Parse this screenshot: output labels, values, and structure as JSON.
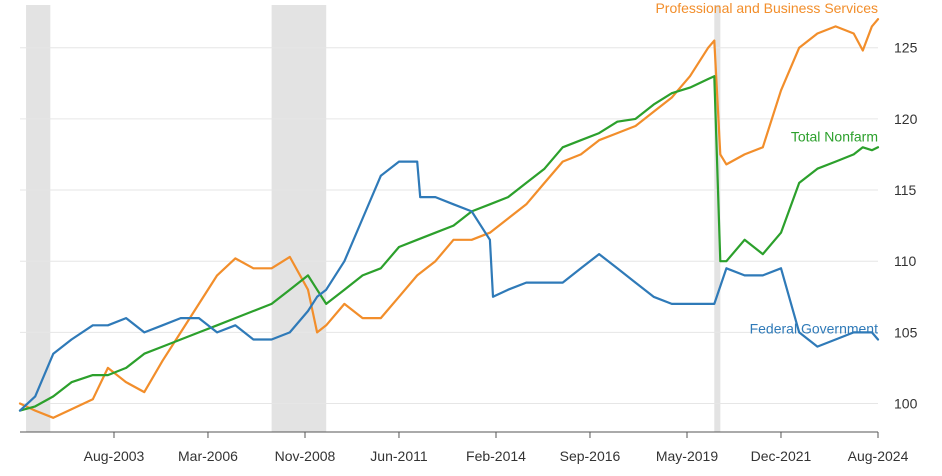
{
  "chart_data": {
    "type": "line",
    "title": "",
    "xlabel": "",
    "ylabel": "",
    "grid": true,
    "ylim": [
      98,
      128
    ],
    "y_ticks": [
      100,
      105,
      110,
      115,
      120,
      125
    ],
    "x_range": [
      "2001-01",
      "2024-08"
    ],
    "x_ticks": [
      {
        "date": "2003-08",
        "label": "Aug-2003"
      },
      {
        "date": "2006-03",
        "label": "Mar-2006"
      },
      {
        "date": "2008-11",
        "label": "Nov-2008"
      },
      {
        "date": "2011-06",
        "label": "Jun-2011"
      },
      {
        "date": "2014-02",
        "label": "Feb-2014"
      },
      {
        "date": "2016-09",
        "label": "Sep-2016"
      },
      {
        "date": "2019-05",
        "label": "May-2019"
      },
      {
        "date": "2021-12",
        "label": "Dec-2021"
      },
      {
        "date": "2024-08",
        "label": "Aug-2024"
      }
    ],
    "recessions": [
      {
        "start": "2001-03",
        "end": "2001-11"
      },
      {
        "start": "2007-12",
        "end": "2009-06"
      },
      {
        "start": "2020-02",
        "end": "2020-04"
      }
    ],
    "series": [
      {
        "name": "Professional and Business Services",
        "color": "#f28e2b",
        "points": [
          [
            "2001-01",
            100.0
          ],
          [
            "2001-06",
            99.5
          ],
          [
            "2001-12",
            99.0
          ],
          [
            "2002-06",
            99.6
          ],
          [
            "2003-01",
            100.3
          ],
          [
            "2003-06",
            102.5
          ],
          [
            "2003-12",
            101.5
          ],
          [
            "2004-06",
            100.8
          ],
          [
            "2004-12",
            103.0
          ],
          [
            "2005-06",
            105.0
          ],
          [
            "2005-12",
            107.0
          ],
          [
            "2006-06",
            109.0
          ],
          [
            "2006-12",
            110.2
          ],
          [
            "2007-06",
            109.5
          ],
          [
            "2007-12",
            109.5
          ],
          [
            "2008-06",
            110.3
          ],
          [
            "2008-12",
            108.0
          ],
          [
            "2009-03",
            105.0
          ],
          [
            "2009-06",
            105.5
          ],
          [
            "2009-12",
            107.0
          ],
          [
            "2010-06",
            106.0
          ],
          [
            "2010-12",
            106.0
          ],
          [
            "2011-06",
            107.5
          ],
          [
            "2011-12",
            109.0
          ],
          [
            "2012-06",
            110.0
          ],
          [
            "2012-12",
            111.5
          ],
          [
            "2013-06",
            111.5
          ],
          [
            "2013-12",
            112.0
          ],
          [
            "2014-06",
            113.0
          ],
          [
            "2014-12",
            114.0
          ],
          [
            "2015-06",
            115.5
          ],
          [
            "2015-12",
            117.0
          ],
          [
            "2016-06",
            117.5
          ],
          [
            "2016-12",
            118.5
          ],
          [
            "2017-06",
            119.0
          ],
          [
            "2017-12",
            119.5
          ],
          [
            "2018-06",
            120.5
          ],
          [
            "2018-12",
            121.5
          ],
          [
            "2019-06",
            123.0
          ],
          [
            "2019-12",
            125.0
          ],
          [
            "2020-02",
            125.5
          ],
          [
            "2020-04",
            117.5
          ],
          [
            "2020-06",
            116.8
          ],
          [
            "2020-12",
            117.5
          ],
          [
            "2021-06",
            118.0
          ],
          [
            "2021-12",
            122.0
          ],
          [
            "2022-06",
            125.0
          ],
          [
            "2022-12",
            126.0
          ],
          [
            "2023-06",
            126.5
          ],
          [
            "2023-12",
            126.0
          ],
          [
            "2024-03",
            124.8
          ],
          [
            "2024-06",
            126.5
          ],
          [
            "2024-08",
            127.0
          ]
        ]
      },
      {
        "name": "Total Nonfarm",
        "color": "#2ca02c",
        "points": [
          [
            "2001-01",
            99.5
          ],
          [
            "2001-06",
            99.8
          ],
          [
            "2001-12",
            100.5
          ],
          [
            "2002-06",
            101.5
          ],
          [
            "2003-01",
            102.0
          ],
          [
            "2003-06",
            102.0
          ],
          [
            "2003-12",
            102.5
          ],
          [
            "2004-06",
            103.5
          ],
          [
            "2004-12",
            104.0
          ],
          [
            "2005-06",
            104.5
          ],
          [
            "2005-12",
            105.0
          ],
          [
            "2006-06",
            105.5
          ],
          [
            "2006-12",
            106.0
          ],
          [
            "2007-06",
            106.5
          ],
          [
            "2007-12",
            107.0
          ],
          [
            "2008-06",
            108.0
          ],
          [
            "2008-12",
            109.0
          ],
          [
            "2009-03",
            108.0
          ],
          [
            "2009-06",
            107.0
          ],
          [
            "2009-12",
            108.0
          ],
          [
            "2010-06",
            109.0
          ],
          [
            "2010-12",
            109.5
          ],
          [
            "2011-06",
            111.0
          ],
          [
            "2011-12",
            111.5
          ],
          [
            "2012-06",
            112.0
          ],
          [
            "2012-12",
            112.5
          ],
          [
            "2013-06",
            113.5
          ],
          [
            "2013-12",
            114.0
          ],
          [
            "2014-06",
            114.5
          ],
          [
            "2014-12",
            115.5
          ],
          [
            "2015-06",
            116.5
          ],
          [
            "2015-12",
            118.0
          ],
          [
            "2016-06",
            118.5
          ],
          [
            "2016-12",
            119.0
          ],
          [
            "2017-06",
            119.8
          ],
          [
            "2017-12",
            120.0
          ],
          [
            "2018-06",
            121.0
          ],
          [
            "2018-12",
            121.8
          ],
          [
            "2019-06",
            122.2
          ],
          [
            "2019-12",
            122.8
          ],
          [
            "2020-02",
            123.0
          ],
          [
            "2020-04",
            110.0
          ],
          [
            "2020-06",
            110.0
          ],
          [
            "2020-12",
            111.5
          ],
          [
            "2021-06",
            110.5
          ],
          [
            "2021-12",
            112.0
          ],
          [
            "2022-06",
            115.5
          ],
          [
            "2022-12",
            116.5
          ],
          [
            "2023-06",
            117.0
          ],
          [
            "2023-12",
            117.5
          ],
          [
            "2024-03",
            118.0
          ],
          [
            "2024-06",
            117.8
          ],
          [
            "2024-08",
            118.0
          ]
        ]
      },
      {
        "name": "Federal Government",
        "color": "#2f7ab8",
        "points": [
          [
            "2001-01",
            99.5
          ],
          [
            "2001-06",
            100.5
          ],
          [
            "2001-12",
            103.5
          ],
          [
            "2002-06",
            104.5
          ],
          [
            "2003-01",
            105.5
          ],
          [
            "2003-06",
            105.5
          ],
          [
            "2003-12",
            106.0
          ],
          [
            "2004-06",
            105.0
          ],
          [
            "2004-12",
            105.5
          ],
          [
            "2005-06",
            106.0
          ],
          [
            "2005-12",
            106.0
          ],
          [
            "2006-06",
            105.0
          ],
          [
            "2006-12",
            105.5
          ],
          [
            "2007-06",
            104.5
          ],
          [
            "2007-12",
            104.5
          ],
          [
            "2008-06",
            105.0
          ],
          [
            "2008-12",
            106.5
          ],
          [
            "2009-03",
            107.5
          ],
          [
            "2009-06",
            108.0
          ],
          [
            "2009-12",
            110.0
          ],
          [
            "2010-06",
            113.0
          ],
          [
            "2010-12",
            116.0
          ],
          [
            "2011-06",
            117.0
          ],
          [
            "2011-12",
            117.0
          ],
          [
            "2012-01",
            114.5
          ],
          [
            "2012-06",
            114.5
          ],
          [
            "2012-12",
            114.0
          ],
          [
            "2013-06",
            113.5
          ],
          [
            "2013-12",
            111.5
          ],
          [
            "2014-01",
            107.5
          ],
          [
            "2014-06",
            108.0
          ],
          [
            "2014-12",
            108.5
          ],
          [
            "2015-06",
            108.5
          ],
          [
            "2015-12",
            108.5
          ],
          [
            "2016-06",
            109.5
          ],
          [
            "2016-12",
            110.5
          ],
          [
            "2017-06",
            109.5
          ],
          [
            "2017-12",
            108.5
          ],
          [
            "2018-06",
            107.5
          ],
          [
            "2018-12",
            107.0
          ],
          [
            "2019-06",
            107.0
          ],
          [
            "2019-12",
            107.0
          ],
          [
            "2020-02",
            107.0
          ],
          [
            "2020-06",
            109.5
          ],
          [
            "2020-12",
            109.0
          ],
          [
            "2021-06",
            109.0
          ],
          [
            "2021-12",
            109.5
          ],
          [
            "2022-06",
            105.0
          ],
          [
            "2022-12",
            104.0
          ],
          [
            "2023-06",
            104.5
          ],
          [
            "2023-12",
            105.0
          ],
          [
            "2024-06",
            105.0
          ],
          [
            "2024-08",
            104.5
          ]
        ]
      }
    ]
  }
}
